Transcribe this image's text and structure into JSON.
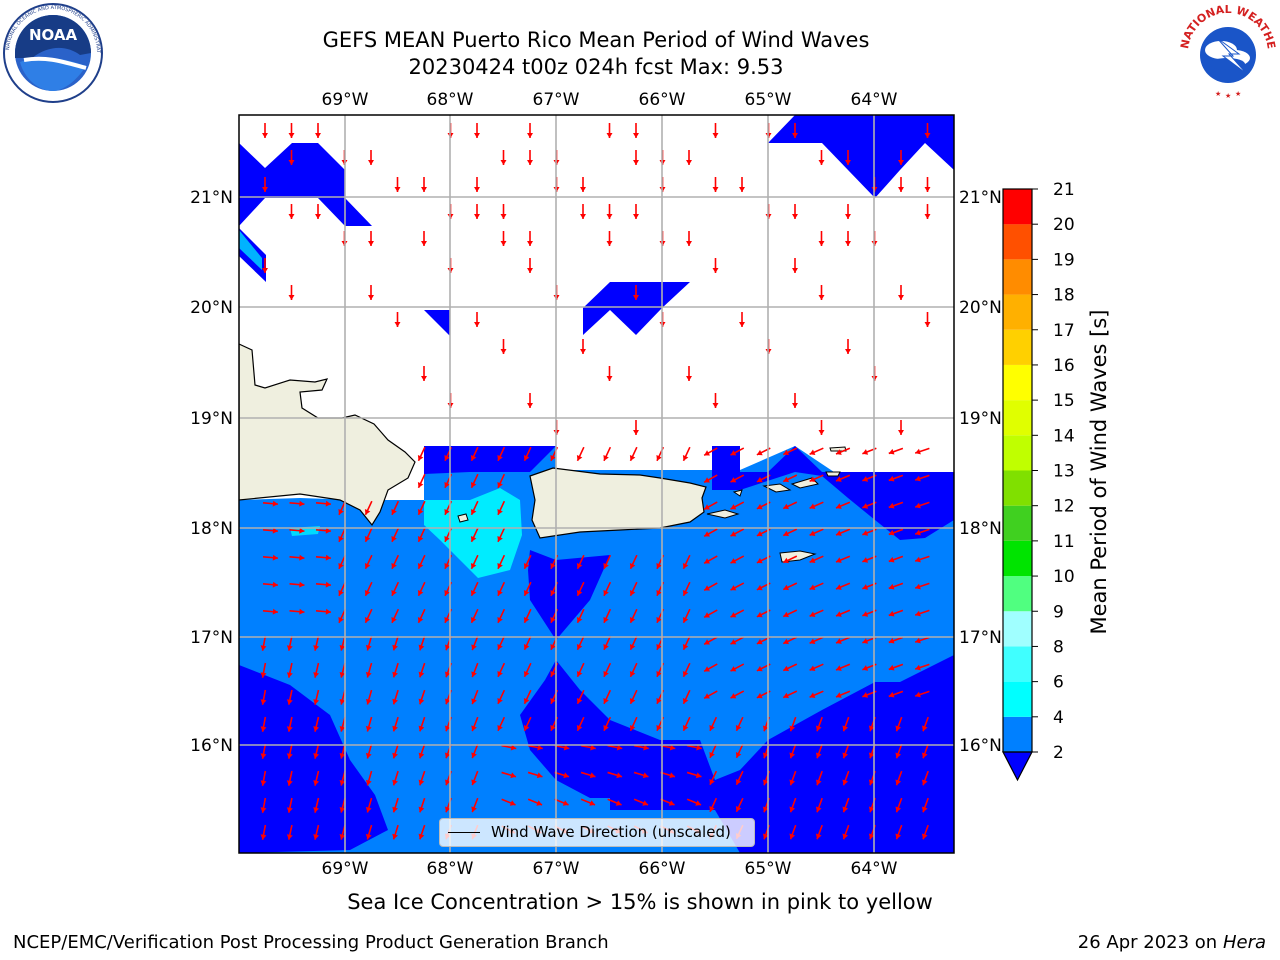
{
  "header": {
    "title_line1": "GEFS MEAN Puerto Rico Mean Period of Wind Waves",
    "title_line2": "20230424 t00z 024h fcst   Max: 9.53"
  },
  "logos": {
    "noaa_text": "NOAA",
    "noaa_ring_text": "NATIONAL OCEANIC AND ATMOSPHERIC ADMINISTRATION · U.S. DEPARTMENT OF COMMERCE",
    "nws_ring_text": "NATIONAL WEATHER SERVICE"
  },
  "map": {
    "lon_labels": [
      "69°W",
      "68°W",
      "67°W",
      "66°W",
      "65°W",
      "64°W"
    ],
    "lat_labels": [
      "21°N",
      "20°N",
      "19°N",
      "18°N",
      "17°N",
      "16°N"
    ],
    "legend_label": "Wind Wave Direction (unscaled)",
    "colors": {
      "level_2_4": "#0080ff",
      "below_2": "#0000ff",
      "level_4_6": "#00ffff",
      "land": "#efefdf",
      "arrow": "#ff0000",
      "grid": "#b0b0b0"
    }
  },
  "colorbar": {
    "label": "Mean Period of Wind Waves [s]",
    "levels": [
      "2",
      "4",
      "6",
      "8",
      "9",
      "10",
      "11",
      "12",
      "13",
      "14",
      "15",
      "16",
      "17",
      "18",
      "19",
      "20",
      "21"
    ],
    "colors": [
      "#0080ff",
      "#00ffff",
      "#40ffff",
      "#a0ffff",
      "#50ff80",
      "#00e400",
      "#40d020",
      "#80e000",
      "#c0ff00",
      "#e0ff00",
      "#ffff00",
      "#ffd000",
      "#ffb000",
      "#ff8c00",
      "#ff5000",
      "#ff2000",
      "#ff0000"
    ],
    "extend_color": "#0000ff"
  },
  "caption": "Sea Ice Concentration > 15% is shown in pink to yellow",
  "footer": {
    "left": "NCEP/EMC/Verification Post Processing Product Generation Branch",
    "right_prefix": "26 Apr 2023 on ",
    "right_host": "Hera"
  }
}
